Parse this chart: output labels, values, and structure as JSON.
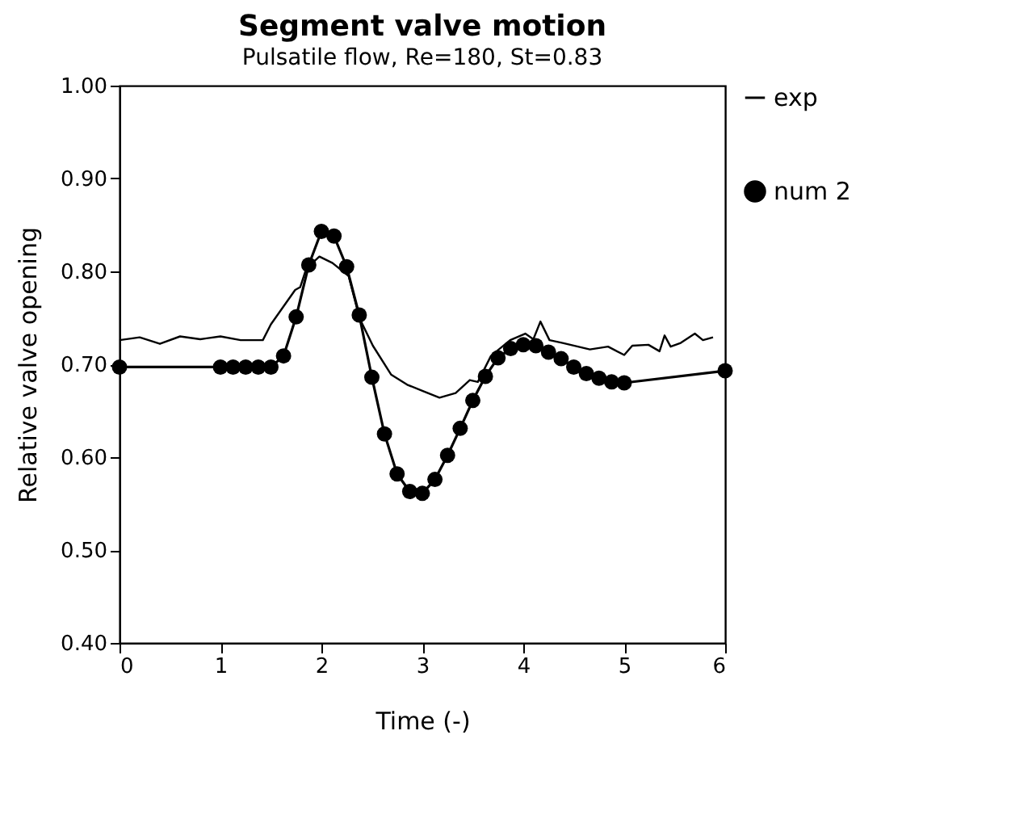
{
  "chart_data": {
    "type": "line",
    "title": "Segment valve motion",
    "subtitle": "Pulsatile flow, Re=180, St=0.83",
    "xlabel": "Time (-)",
    "ylabel": "Relative valve opening",
    "xlim": [
      0,
      6
    ],
    "xticks": [
      0,
      1,
      2,
      3,
      4,
      5,
      6
    ],
    "ylim": [
      0.4,
      1.0
    ],
    "yticks": [
      {
        "value": 0.4,
        "label": "0.40"
      },
      {
        "value": 0.5,
        "label": "0.50"
      },
      {
        "value": 0.6,
        "label": "0.60"
      },
      {
        "value": 0.7,
        "label": "0.70"
      },
      {
        "value": 0.8,
        "label": "0.80"
      },
      {
        "value": 0.9,
        "label": "0.90"
      },
      {
        "value": 1.0,
        "label": "1.00"
      }
    ],
    "grid": false,
    "legend": "right",
    "series": [
      {
        "name": "exp",
        "color": "#000000",
        "marker": "none",
        "x": [
          0,
          0.2,
          0.4,
          0.6,
          0.8,
          1.0,
          1.2,
          1.42,
          1.5,
          1.74,
          1.79,
          1.85,
          1.98,
          2.11,
          2.27,
          2.38,
          2.51,
          2.69,
          2.85,
          3.01,
          3.17,
          3.33,
          3.47,
          3.55,
          3.68,
          3.87,
          4.02,
          4.1,
          4.17,
          4.26,
          4.39,
          4.66,
          4.84,
          5.0,
          5.08,
          5.24,
          5.35,
          5.4,
          5.46,
          5.56,
          5.7,
          5.78,
          5.88
        ],
        "values": [
          0.726,
          0.729,
          0.722,
          0.73,
          0.727,
          0.73,
          0.726,
          0.726,
          0.743,
          0.78,
          0.783,
          0.803,
          0.816,
          0.809,
          0.795,
          0.749,
          0.72,
          0.689,
          0.678,
          0.671,
          0.664,
          0.669,
          0.683,
          0.681,
          0.709,
          0.726,
          0.733,
          0.727,
          0.746,
          0.726,
          0.723,
          0.716,
          0.719,
          0.71,
          0.72,
          0.721,
          0.714,
          0.731,
          0.719,
          0.723,
          0.733,
          0.726,
          0.729
        ]
      },
      {
        "name": "num 2",
        "color": "#000000",
        "marker": "circle",
        "x": [
          0,
          1,
          1.125,
          1.25,
          1.375,
          1.5,
          1.625,
          1.75,
          1.875,
          2,
          2.125,
          2.25,
          2.375,
          2.5,
          2.625,
          2.75,
          2.875,
          3,
          3.125,
          3.25,
          3.375,
          3.5,
          3.625,
          3.75,
          3.875,
          4,
          4.125,
          4.25,
          4.375,
          4.5,
          4.625,
          4.75,
          4.875,
          5,
          6
        ],
        "values": [
          0.697,
          0.697,
          0.697,
          0.697,
          0.697,
          0.697,
          0.709,
          0.751,
          0.807,
          0.843,
          0.838,
          0.805,
          0.753,
          0.686,
          0.625,
          0.582,
          0.563,
          0.561,
          0.576,
          0.602,
          0.631,
          0.661,
          0.687,
          0.707,
          0.717,
          0.721,
          0.72,
          0.713,
          0.706,
          0.697,
          0.69,
          0.685,
          0.681,
          0.68,
          0.693
        ]
      }
    ]
  }
}
